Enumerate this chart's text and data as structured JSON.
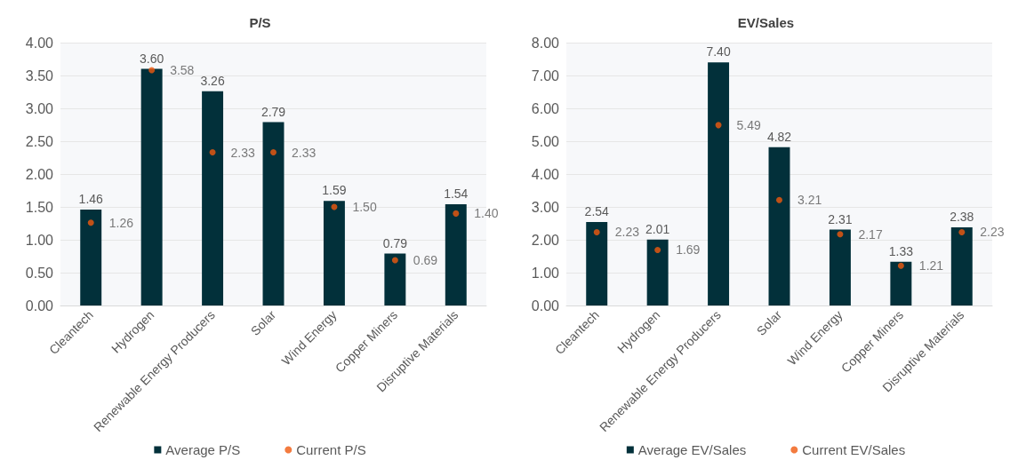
{
  "chart_data": [
    {
      "type": "bar",
      "title": "P/S",
      "categories": [
        "Cleantech",
        "Hydrogen",
        "Renewable Energy Producers",
        "Solar",
        "Wind Energy",
        "Copper Miners",
        "Disruptive Materials"
      ],
      "series": [
        {
          "name": "Average P/S",
          "color": "#02303a",
          "values": [
            1.46,
            3.6,
            3.26,
            2.79,
            1.59,
            0.79,
            1.54
          ],
          "value_labels": [
            "1.46",
            "3.60",
            "3.26",
            "2.79",
            "1.59",
            "0.79",
            "1.54"
          ]
        },
        {
          "name": "Current P/S",
          "type": "scatter",
          "color": "#f05a0f",
          "values": [
            1.26,
            3.58,
            2.33,
            2.33,
            1.5,
            0.69,
            1.4
          ],
          "value_labels": [
            "1.26",
            "3.58",
            "2.33",
            "2.33",
            "1.50",
            "0.69",
            "1.40"
          ]
        }
      ],
      "ylim": [
        0,
        4
      ],
      "yticks": [
        "0.00",
        "0.50",
        "1.00",
        "1.50",
        "2.00",
        "2.50",
        "3.00",
        "3.50",
        "4.00"
      ],
      "grid": "y",
      "legend": "bottom"
    },
    {
      "type": "bar",
      "title": "EV/Sales",
      "categories": [
        "Cleantech",
        "Hydrogen",
        "Renewable Energy Producers",
        "Solar",
        "Wind Energy",
        "Copper Miners",
        "Disruptive Materials"
      ],
      "series": [
        {
          "name": "Average EV/Sales",
          "color": "#02303a",
          "values": [
            2.54,
            2.01,
            7.4,
            4.82,
            2.31,
            1.33,
            2.38
          ],
          "value_labels": [
            "2.54",
            "2.01",
            "7.40",
            "4.82",
            "2.31",
            "1.33",
            "2.38"
          ]
        },
        {
          "name": "Current EV/Sales",
          "type": "scatter",
          "color": "#f05a0f",
          "values": [
            2.23,
            1.69,
            5.49,
            3.21,
            2.17,
            1.21,
            2.23
          ],
          "value_labels": [
            "2.23",
            "1.69",
            "5.49",
            "3.21",
            "2.17",
            "1.21",
            "2.23"
          ]
        }
      ],
      "ylim": [
        0,
        8
      ],
      "yticks": [
        "0.00",
        "1.00",
        "2.00",
        "3.00",
        "4.00",
        "5.00",
        "6.00",
        "7.00",
        "8.00"
      ],
      "grid": "y",
      "legend": "bottom"
    }
  ]
}
